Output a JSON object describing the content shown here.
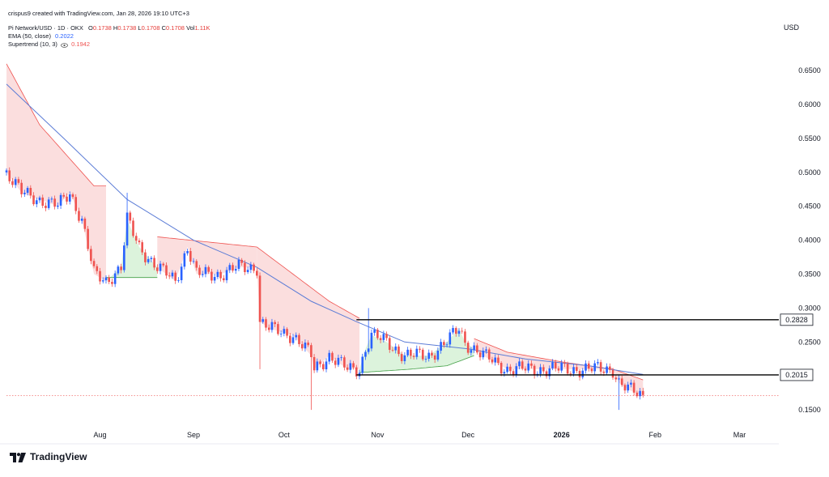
{
  "header": {
    "credit": "crispus9 created with TradingView.com, Jan 28, 2026 19:10 UTC+3",
    "symbol_line": "Pi Network/USD · 1D · OKX",
    "ohlc": {
      "o_label": "O",
      "o": "0.1738",
      "h_label": "H",
      "h": "0.1738",
      "l_label": "L",
      "l": "0.1708",
      "c_label": "C",
      "c": "0.1708",
      "vol_label": "Vol",
      "vol": "1.11K"
    },
    "ema_label": "EMA (50, close)",
    "ema_value": "0.2022",
    "supertrend_label": "Supertrend (10, 3)",
    "supertrend_icon": "eye-icon",
    "supertrend_value": "0.1942"
  },
  "brand": {
    "name": "TradingView",
    "icon": "tradingview-logo-icon"
  },
  "colors": {
    "up": "#2962ff",
    "down": "#ef5350",
    "ema": "#5b7cd6",
    "st_down_fill": "#fbdede",
    "st_up_fill": "#dcf3dc",
    "level": "#000000"
  },
  "chart_data": {
    "type": "candlestick",
    "currency_label": "USD",
    "y_ticks": [
      "0.6500",
      "0.6000",
      "0.5500",
      "0.5000",
      "0.4500",
      "0.4000",
      "0.3500",
      "0.3000",
      "0.2500",
      "0.1500"
    ],
    "ylim": [
      0.1,
      0.68
    ],
    "x_ticks": [
      "Aug",
      "Sep",
      "Oct",
      "Nov",
      "Dec",
      "2026",
      "Feb",
      "Mar"
    ],
    "x_tick_dates": [
      "2025-08-01",
      "2025-09-01",
      "2025-10-01",
      "2025-11-01",
      "2025-12-01",
      "2026-01-01",
      "2026-02-01",
      "2026-03-01"
    ],
    "date_range": [
      "2025-07-01",
      "2026-03-14"
    ],
    "close_anchor_points": [
      [
        "2025-07-01",
        0.5
      ],
      [
        "2025-07-06",
        0.47
      ],
      [
        "2025-07-12",
        0.46
      ],
      [
        "2025-07-18",
        0.45
      ],
      [
        "2025-07-22",
        0.47
      ],
      [
        "2025-07-26",
        0.43
      ],
      [
        "2025-07-28",
        0.39
      ],
      [
        "2025-07-30",
        0.35
      ],
      [
        "2025-08-03",
        0.34
      ],
      [
        "2025-08-08",
        0.36
      ],
      [
        "2025-08-10",
        0.43
      ],
      [
        "2025-08-14",
        0.39
      ],
      [
        "2025-08-20",
        0.36
      ],
      [
        "2025-08-26",
        0.34
      ],
      [
        "2025-08-30",
        0.39
      ],
      [
        "2025-09-02",
        0.35
      ],
      [
        "2025-09-10",
        0.35
      ],
      [
        "2025-09-16",
        0.36
      ],
      [
        "2025-09-22",
        0.36
      ],
      [
        "2025-09-23",
        0.28
      ],
      [
        "2025-09-26",
        0.27
      ],
      [
        "2025-10-04",
        0.26
      ],
      [
        "2025-10-10",
        0.23
      ],
      [
        "2025-10-11",
        0.21
      ],
      [
        "2025-10-16",
        0.23
      ],
      [
        "2025-10-22",
        0.21
      ],
      [
        "2025-10-26",
        0.21
      ],
      [
        "2025-10-28",
        0.24
      ],
      [
        "2025-10-30",
        0.26
      ],
      [
        "2025-11-04",
        0.25
      ],
      [
        "2025-11-10",
        0.23
      ],
      [
        "2025-11-18",
        0.23
      ],
      [
        "2025-11-24",
        0.25
      ],
      [
        "2025-11-28",
        0.27
      ],
      [
        "2025-11-30",
        0.25
      ],
      [
        "2025-12-06",
        0.23
      ],
      [
        "2025-12-14",
        0.21
      ],
      [
        "2025-12-22",
        0.21
      ],
      [
        "2026-01-02",
        0.21
      ],
      [
        "2026-01-12",
        0.21
      ],
      [
        "2026-01-18",
        0.21
      ],
      [
        "2026-01-20",
        0.19
      ],
      [
        "2026-01-23",
        0.18
      ],
      [
        "2026-01-28",
        0.1708
      ]
    ],
    "candle_amplitude": 0.008,
    "spike_lows": [
      [
        "2025-09-23",
        0.21
      ],
      [
        "2025-10-10",
        0.15
      ],
      [
        "2026-01-20",
        0.15
      ]
    ],
    "spike_highs": [
      [
        "2025-08-10",
        0.47
      ],
      [
        "2025-10-29",
        0.3
      ]
    ],
    "ema_50": {
      "name": "EMA (50, close)",
      "points": [
        [
          "2025-07-01",
          0.63
        ],
        [
          "2025-07-20",
          0.55
        ],
        [
          "2025-08-10",
          0.46
        ],
        [
          "2025-09-01",
          0.4
        ],
        [
          "2025-09-22",
          0.36
        ],
        [
          "2025-10-10",
          0.31
        ],
        [
          "2025-10-25",
          0.28
        ],
        [
          "2025-11-10",
          0.25
        ],
        [
          "2025-12-01",
          0.24
        ],
        [
          "2025-12-20",
          0.225
        ],
        [
          "2026-01-10",
          0.215
        ],
        [
          "2026-01-28",
          0.2022
        ]
      ]
    },
    "supertrend": {
      "name": "Supertrend (10, 3)",
      "segments": [
        {
          "trend": "down",
          "points": [
            [
              "2025-07-01",
              0.66
            ],
            [
              "2025-07-12",
              0.57
            ],
            [
              "2025-07-22",
              0.52
            ],
            [
              "2025-07-30",
              0.48
            ],
            [
              "2025-08-03",
              0.48
            ]
          ]
        },
        {
          "trend": "up",
          "points": [
            [
              "2025-08-03",
              0.345
            ],
            [
              "2025-08-20",
              0.345
            ]
          ]
        },
        {
          "trend": "down",
          "points": [
            [
              "2025-08-20",
              0.405
            ],
            [
              "2025-09-22",
              0.39
            ]
          ]
        },
        {
          "trend": "down",
          "points": [
            [
              "2025-09-22",
              0.39
            ],
            [
              "2025-10-04",
              0.35
            ],
            [
              "2025-10-16",
              0.31
            ],
            [
              "2025-10-26",
              0.285
            ]
          ]
        },
        {
          "trend": "up",
          "points": [
            [
              "2025-10-26",
              0.205
            ],
            [
              "2025-11-12",
              0.21
            ],
            [
              "2025-11-24",
              0.215
            ],
            [
              "2025-12-03",
              0.23
            ]
          ]
        },
        {
          "trend": "down",
          "points": [
            [
              "2025-12-03",
              0.255
            ],
            [
              "2025-12-14",
              0.235
            ],
            [
              "2026-01-02",
              0.22
            ],
            [
              "2026-01-18",
              0.21
            ],
            [
              "2026-01-28",
              0.1942
            ]
          ]
        }
      ]
    },
    "levels": [
      {
        "label": "0.2828",
        "value": 0.2828,
        "from": "2025-10-25"
      },
      {
        "label": "0.2015",
        "value": 0.2015,
        "from": "2025-10-25"
      }
    ],
    "current_price_line": 0.1708,
    "grid": false,
    "legend": "top-left"
  }
}
